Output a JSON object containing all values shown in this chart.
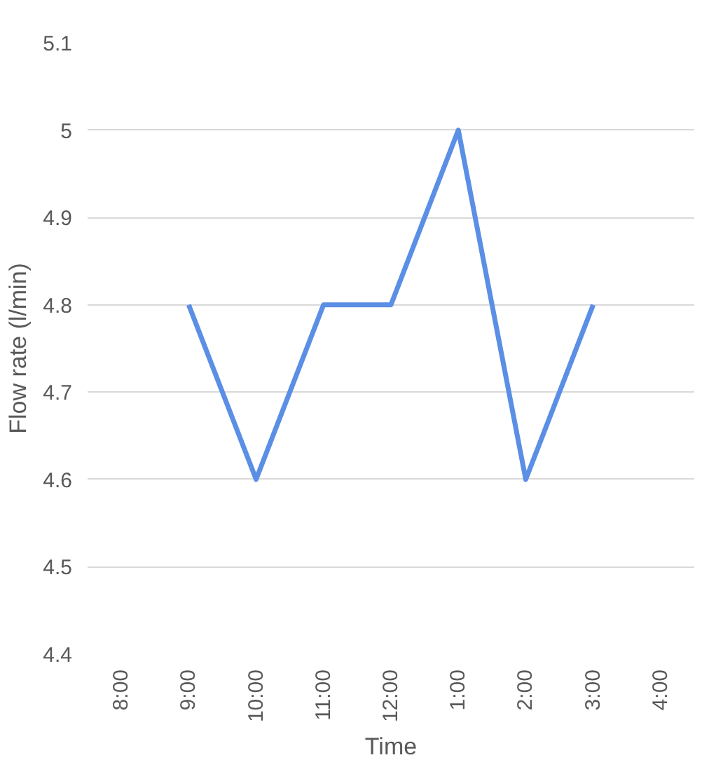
{
  "chart_data": {
    "type": "line",
    "xlabel": "Time",
    "ylabel": "Flow rate (l/min)",
    "categories": [
      "8:00",
      "9:00",
      "10:00",
      "11:00",
      "12:00",
      "1:00",
      "2:00",
      "3:00",
      "4:00"
    ],
    "series": [
      {
        "color": "#5b8fe6",
        "values": [
          null,
          4.8,
          4.6,
          4.8,
          4.8,
          5.0,
          4.6,
          4.8,
          null
        ]
      }
    ],
    "ylim": [
      4.4,
      5.1
    ],
    "yticks": [
      4.4,
      4.5,
      4.6,
      4.7,
      4.8,
      4.9,
      5,
      5.1
    ],
    "grid": "y",
    "marker": "none",
    "line_style": "solid"
  }
}
